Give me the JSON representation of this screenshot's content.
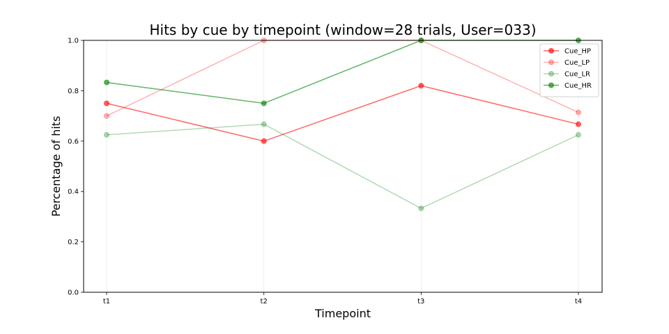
{
  "chart_data": {
    "type": "line",
    "title": "Hits by cue by timepoint (window=28 trials, User=033)",
    "xlabel": "Timepoint",
    "ylabel": "Percentage of hits",
    "categories": [
      "t1",
      "t2",
      "t3",
      "t4"
    ],
    "ylim": [
      0.0,
      1.0
    ],
    "yticks": [
      "0.0",
      "0.2",
      "0.4",
      "0.6",
      "0.8",
      "1.0"
    ],
    "grid": "vertical",
    "legend": "top-right",
    "series": [
      {
        "name": "Cue_HP",
        "color": "#ff0000",
        "opacity": 0.6,
        "values": [
          0.75,
          0.6,
          0.82,
          0.667
        ]
      },
      {
        "name": "Cue_LP",
        "color": "#ff0000",
        "opacity": 0.3,
        "values": [
          0.7,
          1.0,
          1.0,
          0.714
        ]
      },
      {
        "name": "Cue_LR",
        "color": "#008000",
        "opacity": 0.3,
        "values": [
          0.625,
          0.667,
          0.333,
          0.625
        ]
      },
      {
        "name": "Cue_HR",
        "color": "#008000",
        "opacity": 0.6,
        "values": [
          0.833,
          0.75,
          1.0,
          1.0
        ]
      }
    ]
  }
}
